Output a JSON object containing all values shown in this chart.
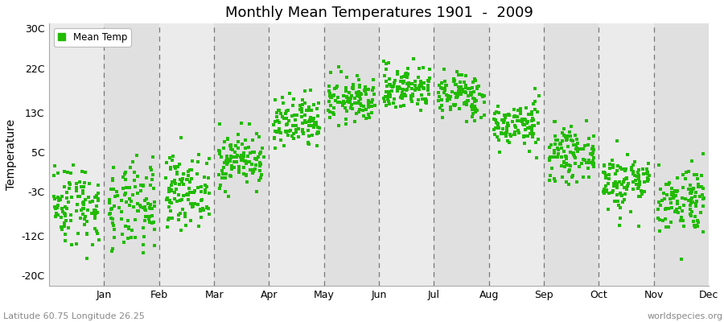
{
  "title": "Monthly Mean Temperatures 1901  -  2009",
  "ylabel": "Temperature",
  "subtitle_left": "Latitude 60.75 Longitude 26.25",
  "subtitle_right": "worldspecies.org",
  "dot_color": "#22bb00",
  "bg_color_odd": "#ebebeb",
  "bg_color_even": "#e0e0e0",
  "yticks": [
    -20,
    -12,
    -3,
    5,
    13,
    22,
    30
  ],
  "ytick_labels": [
    "-20C",
    "-12C",
    "-3C",
    "5C",
    "13C",
    "22C",
    "30C"
  ],
  "ylim": [
    -22,
    31
  ],
  "months": [
    "Jan",
    "Feb",
    "Mar",
    "Apr",
    "May",
    "Jun",
    "Jul",
    "Aug",
    "Sep",
    "Oct",
    "Nov",
    "Dec"
  ],
  "mean_temps": [
    -5.5,
    -6.5,
    -2.8,
    3.5,
    10.5,
    15.5,
    18.0,
    16.5,
    10.5,
    4.5,
    -1.0,
    -4.5
  ],
  "std_temps": [
    4.2,
    4.5,
    3.5,
    2.8,
    2.8,
    2.3,
    2.3,
    2.3,
    2.3,
    2.5,
    3.0,
    3.5
  ],
  "n_years": 109,
  "random_seed": 42,
  "legend_label": "Mean Temp",
  "marker_size": 5,
  "fig_width": 9.0,
  "fig_height": 4.0,
  "dpi": 100
}
